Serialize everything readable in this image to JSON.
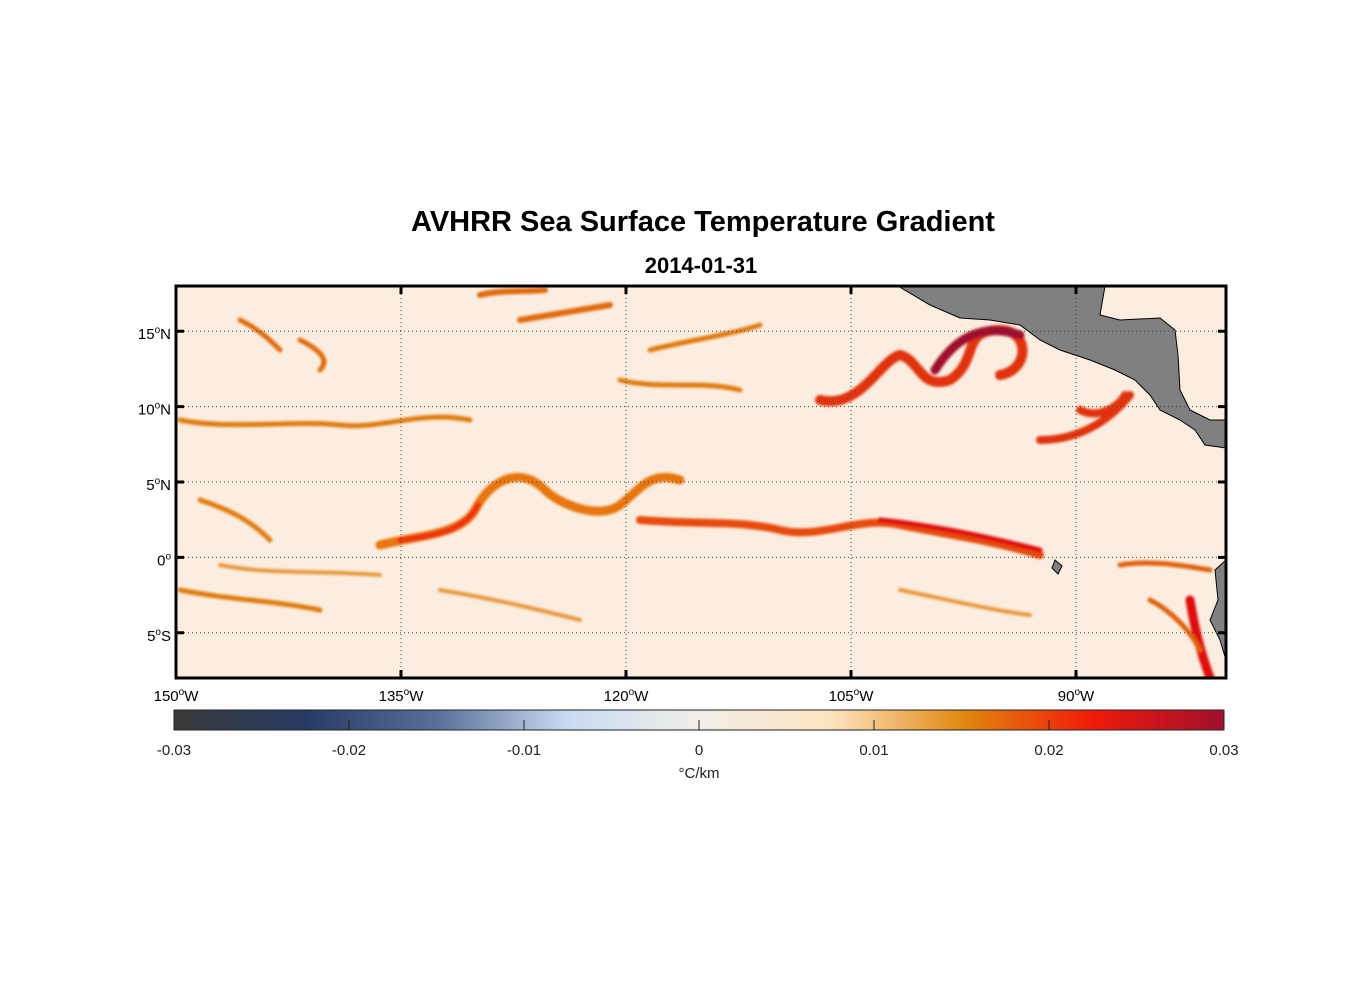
{
  "chart_data": {
    "type": "heatmap",
    "title": "AVHRR Sea Surface Temperature Gradient",
    "subtitle": "2014-01-31",
    "xlim": [
      -150,
      -80
    ],
    "ylim": [
      -8,
      18
    ],
    "x_ticks": [
      {
        "value": -150,
        "label": "150",
        "suffix": "W"
      },
      {
        "value": -135,
        "label": "135",
        "suffix": "W"
      },
      {
        "value": -120,
        "label": "120",
        "suffix": "W"
      },
      {
        "value": -105,
        "label": "105",
        "suffix": "W"
      },
      {
        "value": -90,
        "label": "90",
        "suffix": "W"
      }
    ],
    "y_ticks": [
      {
        "value": 15,
        "label": "15",
        "suffix": "N"
      },
      {
        "value": 10,
        "label": "10",
        "suffix": "N"
      },
      {
        "value": 5,
        "label": "5",
        "suffix": "N"
      },
      {
        "value": 0,
        "label": "0",
        "suffix": ""
      },
      {
        "value": -5,
        "label": "5",
        "suffix": "S"
      }
    ],
    "grid": true,
    "colorbar": {
      "range": [
        -0.03,
        0.03
      ],
      "ticks": [
        {
          "value": -0.03,
          "label": "-0.03"
        },
        {
          "value": -0.02,
          "label": "-0.02"
        },
        {
          "value": -0.01,
          "label": "-0.01"
        },
        {
          "value": 0,
          "label": "0"
        },
        {
          "value": 0.01,
          "label": "0.01"
        },
        {
          "value": 0.02,
          "label": "0.02"
        },
        {
          "value": 0.03,
          "label": "0.03"
        }
      ],
      "label": "°C/km",
      "colors": [
        "#3a3a3a",
        "#263a63",
        "#5a6f99",
        "#c8daf2",
        "#f2efe9",
        "#fde4c0",
        "#e08a10",
        "#f01a08",
        "#a0102e"
      ]
    },
    "land_color": "#808080"
  }
}
